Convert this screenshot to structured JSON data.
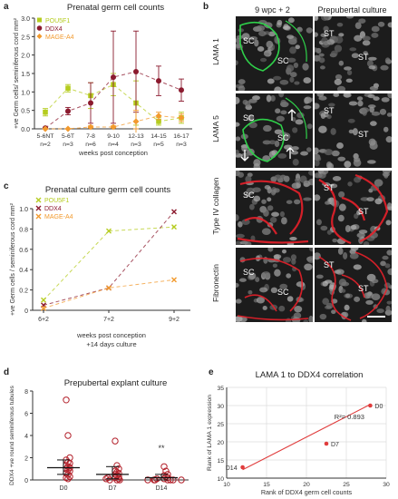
{
  "panels": {
    "a": {
      "letter": "a",
      "title": "Prenatal germ cell counts",
      "ylabel": "+ve Germ cells/ seminiferous cord mm²",
      "xlabel": "weeks post conception",
      "legend": [
        "POU5F1",
        "DDX4",
        "MAGE-A4"
      ]
    },
    "b": {
      "letter": "b",
      "col_labels": [
        "9 wpc + 2",
        "Prepubertal culture"
      ],
      "row_labels": [
        "LAMA 1",
        "LAMA 5",
        "Type IV collagen",
        "Fibronectin"
      ],
      "cell_labels": [
        [
          "SC",
          "SC",
          "ST",
          "ST"
        ],
        [
          "SC",
          "SC",
          "ST",
          "ST"
        ],
        [
          "SC",
          "",
          "ST",
          "ST"
        ],
        [
          "SC",
          "SC",
          "ST",
          "ST"
        ]
      ]
    },
    "c": {
      "letter": "c",
      "title": "Prenatal culture germ cell counts",
      "ylabel": "+ve Germ cells / seminiferous cord mm²",
      "xlabel_line1": "weeks post conception",
      "xlabel_line2": "+14 days culture",
      "legend": [
        "POU5F1",
        "DDX4",
        "MAGE-A4"
      ]
    },
    "d": {
      "letter": "d",
      "title": "Prepubertal explant culture",
      "ylabel": "DDX4 +ve round seminiferous tubules",
      "annotation": "**"
    },
    "e": {
      "letter": "e",
      "title": "LAMA 1 to DDX4 correlation",
      "ylabel": "Rank of LAMA 1 expression",
      "xlabel": "Rank of DDX4 germ cell counts",
      "r2_label": "R²= 0.893"
    }
  },
  "colors": {
    "pou5f1": "#b5cc1f",
    "ddx4": "#8b1a2e",
    "mage": "#f29a2e",
    "scatter_d": "#b3202a",
    "fit_e": "#e03c3c",
    "micro_bg": "#1c1c1c",
    "green_stain": "#2fd14a",
    "red_stain": "#e8202a"
  },
  "chart_data": [
    {
      "id": "a",
      "type": "line",
      "categories": [
        "5-6NT",
        "5-6T",
        "7-8",
        "9-10",
        "12-13",
        "14-15",
        "16-17"
      ],
      "category_counts": [
        "n=2",
        "n=3",
        "n=6",
        "n=4",
        "n=3",
        "n=5",
        "n=3"
      ],
      "ylim": [
        0,
        3.0
      ],
      "yticks": [
        0,
        0.5,
        1.0,
        1.5,
        2.0,
        2.5,
        3.0
      ],
      "series": [
        {
          "name": "POU5F1",
          "values": [
            0.45,
            1.1,
            0.9,
            1.2,
            0.7,
            0.2,
            0.3
          ],
          "err": [
            0.1,
            0.1,
            0.35,
            0.3,
            0.6,
            0.1,
            0.15
          ]
        },
        {
          "name": "DDX4",
          "values": [
            0.02,
            0.48,
            0.7,
            1.4,
            1.55,
            1.3,
            1.05
          ],
          "err": [
            0.02,
            0.1,
            0.55,
            1.25,
            1.1,
            0.4,
            0.3
          ]
        },
        {
          "name": "MAGE-A4",
          "values": [
            0.0,
            0.0,
            0.05,
            0.05,
            0.2,
            0.35,
            0.3
          ],
          "err": [
            0.0,
            0.0,
            0.03,
            0.03,
            0.3,
            0.1,
            0.1
          ]
        }
      ]
    },
    {
      "id": "c",
      "type": "line",
      "categories": [
        "6+2",
        "7+2",
        "9+2"
      ],
      "ylim": [
        0,
        1.0
      ],
      "yticks": [
        0,
        0.2,
        0.4,
        0.6,
        0.8,
        1.0
      ],
      "series": [
        {
          "name": "POU5F1",
          "values": [
            0.1,
            0.78,
            0.82
          ]
        },
        {
          "name": "DDX4",
          "values": [
            0.05,
            0.22,
            0.97
          ]
        },
        {
          "name": "MAGE-A4",
          "values": [
            0.02,
            0.22,
            0.3
          ]
        }
      ]
    },
    {
      "id": "d",
      "type": "scatter",
      "categories": [
        "D0",
        "D7",
        "D14"
      ],
      "ylim": [
        0,
        8
      ],
      "yticks": [
        0,
        2,
        4,
        6,
        8
      ],
      "groups": [
        {
          "name": "D0",
          "values": [
            7.2,
            4.0,
            2.0,
            1.8,
            1.6,
            1.5,
            1.3,
            1.2,
            1.1,
            1.0,
            0.9,
            0.8,
            0.6,
            0.5,
            0.3,
            0.2,
            0.1
          ],
          "median": 1.1,
          "q1": 0.5,
          "q3": 1.8
        },
        {
          "name": "D7",
          "values": [
            3.5,
            1.3,
            1.0,
            0.8,
            0.7,
            0.6,
            0.5,
            0.4,
            0.3,
            0.2,
            0.2,
            0.1,
            0.1,
            0.0,
            0.0,
            0.0
          ],
          "median": 0.5,
          "q1": 0.1,
          "q3": 1.2
        },
        {
          "name": "D14",
          "values": [
            1.2,
            0.8,
            0.5,
            0.4,
            0.3,
            0.2,
            0.1,
            0.1,
            0.0,
            0.0,
            0.0,
            0.0,
            0.0,
            0.0,
            0.0
          ],
          "median": 0.2,
          "q1": 0.0,
          "q3": 0.5
        }
      ]
    },
    {
      "id": "e",
      "type": "scatter",
      "xlim": [
        10,
        30
      ],
      "ylim": [
        10,
        35
      ],
      "xticks": [
        10,
        15,
        20,
        25,
        30
      ],
      "yticks": [
        10,
        15,
        20,
        25,
        30,
        35
      ],
      "points": [
        {
          "label": "D0",
          "x": 28,
          "y": 30
        },
        {
          "label": "D7",
          "x": 22.5,
          "y": 19.5
        },
        {
          "label": "D14",
          "x": 12,
          "y": 13
        }
      ],
      "fit": {
        "x": [
          12,
          28
        ],
        "y": [
          12.3,
          30.3
        ]
      }
    }
  ]
}
